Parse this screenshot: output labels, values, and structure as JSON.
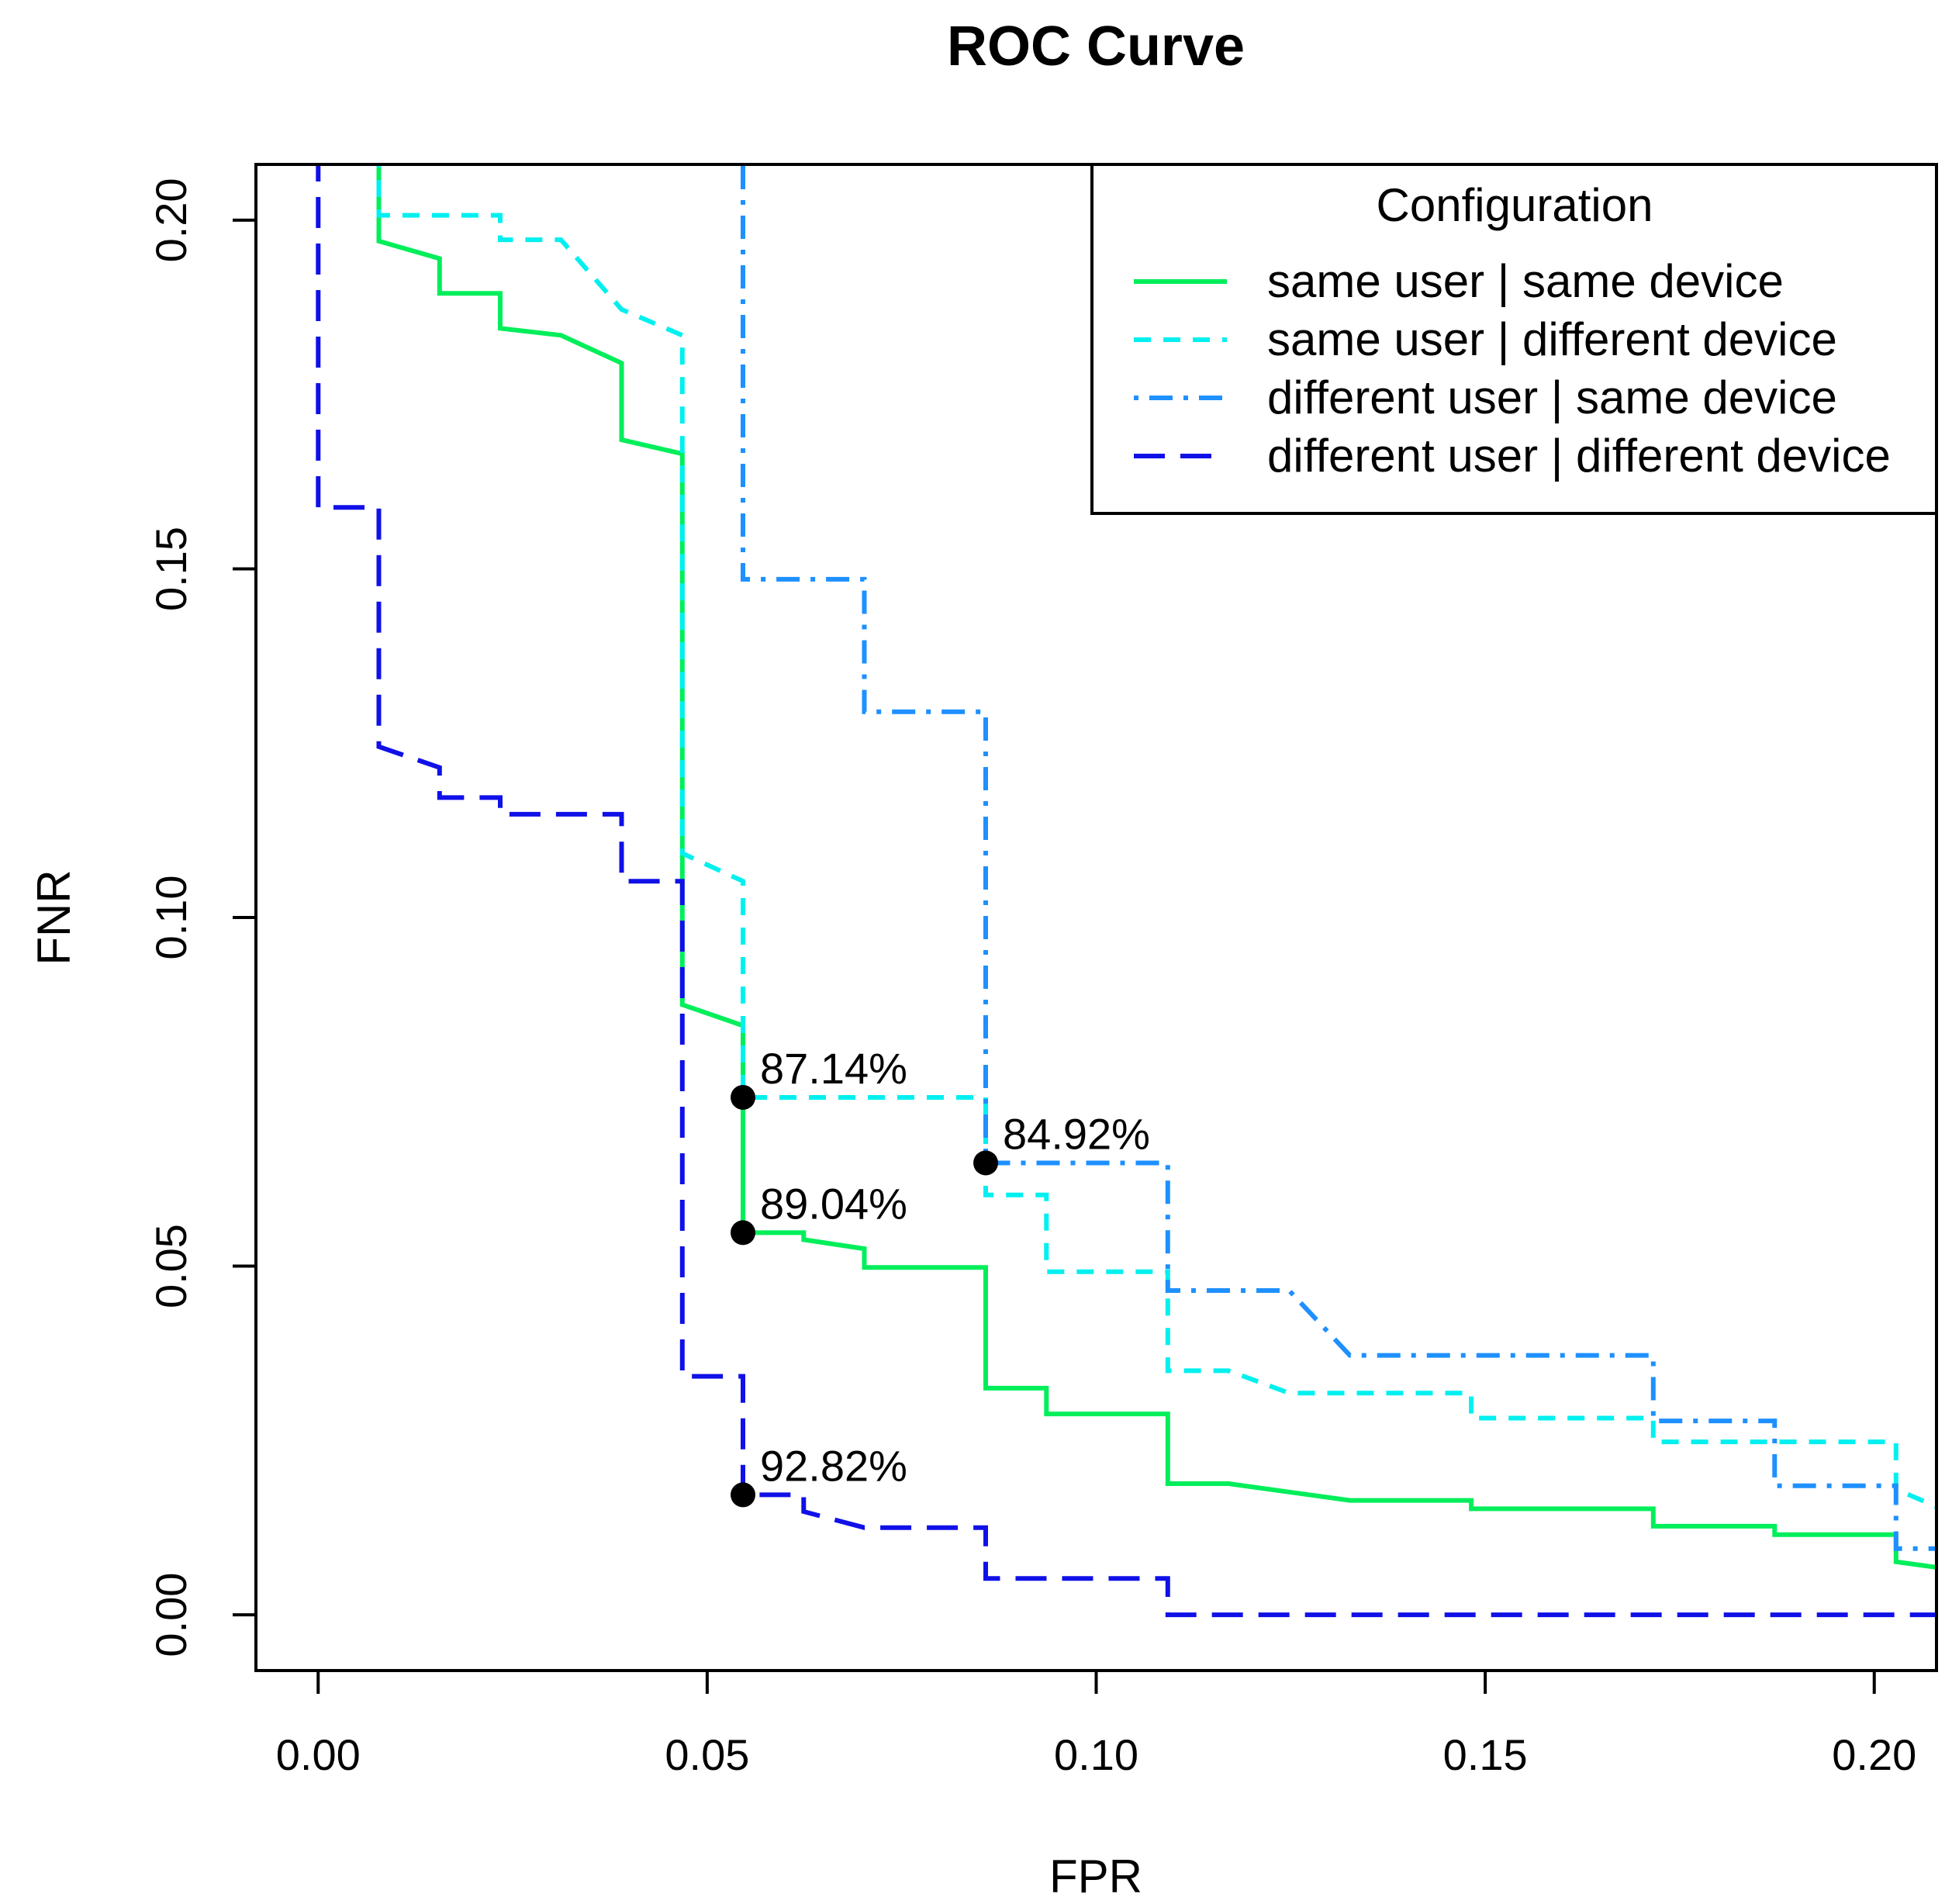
{
  "chart_data": {
    "type": "line",
    "title": "ROC Curve",
    "xlabel": "FPR",
    "ylabel": "FNR",
    "xlim": [
      -0.008,
      0.208
    ],
    "ylim": [
      -0.008,
      0.208
    ],
    "x_ticks": [
      {
        "value": 0.0,
        "label": "0.00"
      },
      {
        "value": 0.05,
        "label": "0.05"
      },
      {
        "value": 0.1,
        "label": "0.10"
      },
      {
        "value": 0.15,
        "label": "0.15"
      },
      {
        "value": 0.2,
        "label": "0.20"
      }
    ],
    "y_ticks": [
      {
        "value": 0.0,
        "label": "0.00"
      },
      {
        "value": 0.05,
        "label": "0.05"
      },
      {
        "value": 0.1,
        "label": "0.10"
      },
      {
        "value": 0.15,
        "label": "0.15"
      },
      {
        "value": 0.2,
        "label": "0.20"
      }
    ],
    "grid": false,
    "legend": {
      "title": "Configuration",
      "position": "top-right"
    },
    "series": [
      {
        "name": "same user | same device",
        "color": "#00ee5a",
        "dash": "solid",
        "points": [
          [
            0.0078,
            0.21
          ],
          [
            0.0078,
            0.197
          ],
          [
            0.0156,
            0.1945
          ],
          [
            0.0156,
            0.1895
          ],
          [
            0.0234,
            0.1895
          ],
          [
            0.0234,
            0.1845
          ],
          [
            0.0312,
            0.1835
          ],
          [
            0.039,
            0.1795
          ],
          [
            0.039,
            0.1685
          ],
          [
            0.0468,
            0.1665
          ],
          [
            0.0468,
            0.0875
          ],
          [
            0.0546,
            0.0845
          ],
          [
            0.0546,
            0.0548
          ],
          [
            0.0624,
            0.0548
          ],
          [
            0.0624,
            0.0538
          ],
          [
            0.0702,
            0.0525
          ],
          [
            0.0702,
            0.0498
          ],
          [
            0.0858,
            0.0498
          ],
          [
            0.0858,
            0.0325
          ],
          [
            0.0936,
            0.0325
          ],
          [
            0.0936,
            0.0288
          ],
          [
            0.1092,
            0.0288
          ],
          [
            0.1092,
            0.0188
          ],
          [
            0.117,
            0.0188
          ],
          [
            0.1326,
            0.0164
          ],
          [
            0.1482,
            0.0164
          ],
          [
            0.1482,
            0.0152
          ],
          [
            0.1716,
            0.0152
          ],
          [
            0.1716,
            0.0127
          ],
          [
            0.1872,
            0.0127
          ],
          [
            0.1872,
            0.0115
          ],
          [
            0.2028,
            0.0115
          ],
          [
            0.2028,
            0.0076
          ],
          [
            0.208,
            0.0068
          ]
        ]
      },
      {
        "name": "same user | different device",
        "color": "#00f0f0",
        "dash": "short",
        "points": [
          [
            0.0078,
            0.21
          ],
          [
            0.0078,
            0.2007
          ],
          [
            0.0234,
            0.2007
          ],
          [
            0.0234,
            0.1972
          ],
          [
            0.0312,
            0.1972
          ],
          [
            0.039,
            0.1872
          ],
          [
            0.0468,
            0.1835
          ],
          [
            0.0468,
            0.1092
          ],
          [
            0.0546,
            0.1052
          ],
          [
            0.0546,
            0.0742
          ],
          [
            0.0858,
            0.0742
          ],
          [
            0.0858,
            0.0602
          ],
          [
            0.0936,
            0.0602
          ],
          [
            0.0936,
            0.0492
          ],
          [
            0.1092,
            0.0492
          ],
          [
            0.1092,
            0.035
          ],
          [
            0.117,
            0.035
          ],
          [
            0.1248,
            0.0318
          ],
          [
            0.1482,
            0.0318
          ],
          [
            0.1482,
            0.0282
          ],
          [
            0.1716,
            0.0282
          ],
          [
            0.1716,
            0.0248
          ],
          [
            0.2028,
            0.0248
          ],
          [
            0.2028,
            0.018
          ],
          [
            0.208,
            0.0155
          ]
        ]
      },
      {
        "name": "different user | same device",
        "color": "#1e90ff",
        "dash": "dotdash",
        "points": [
          [
            0.0546,
            0.21
          ],
          [
            0.0546,
            0.1485
          ],
          [
            0.0702,
            0.1485
          ],
          [
            0.0702,
            0.1295
          ],
          [
            0.0858,
            0.1295
          ],
          [
            0.0858,
            0.0648
          ],
          [
            0.1092,
            0.0648
          ],
          [
            0.1092,
            0.0465
          ],
          [
            0.1248,
            0.0465
          ],
          [
            0.1326,
            0.0372
          ],
          [
            0.1716,
            0.0372
          ],
          [
            0.1716,
            0.0278
          ],
          [
            0.1872,
            0.0278
          ],
          [
            0.1872,
            0.0185
          ],
          [
            0.2028,
            0.0185
          ],
          [
            0.2028,
            0.0095
          ],
          [
            0.208,
            0.0095
          ]
        ]
      },
      {
        "name": "different user | different device",
        "color": "#1010e8",
        "dash": "long",
        "points": [
          [
            0.0,
            0.21
          ],
          [
            0.0,
            0.1588
          ],
          [
            0.0078,
            0.1588
          ],
          [
            0.0078,
            0.1245
          ],
          [
            0.0156,
            0.1215
          ],
          [
            0.0156,
            0.1172
          ],
          [
            0.0234,
            0.1172
          ],
          [
            0.0234,
            0.1148
          ],
          [
            0.039,
            0.1148
          ],
          [
            0.039,
            0.1052
          ],
          [
            0.0468,
            0.1052
          ],
          [
            0.0468,
            0.0342
          ],
          [
            0.0546,
            0.0342
          ],
          [
            0.0546,
            0.0172
          ],
          [
            0.0624,
            0.0172
          ],
          [
            0.0624,
            0.0148
          ],
          [
            0.0702,
            0.0125
          ],
          [
            0.0858,
            0.0125
          ],
          [
            0.0858,
            0.0052
          ],
          [
            0.1092,
            0.0052
          ],
          [
            0.1092,
            0.0
          ],
          [
            0.208,
            0.0
          ]
        ]
      }
    ],
    "annotations": [
      {
        "x": 0.0546,
        "y": 0.0742,
        "label": "87.14%"
      },
      {
        "x": 0.0858,
        "y": 0.0648,
        "label": "84.92%"
      },
      {
        "x": 0.0546,
        "y": 0.0548,
        "label": "89.04%"
      },
      {
        "x": 0.0546,
        "y": 0.0172,
        "label": "92.82%"
      }
    ]
  }
}
